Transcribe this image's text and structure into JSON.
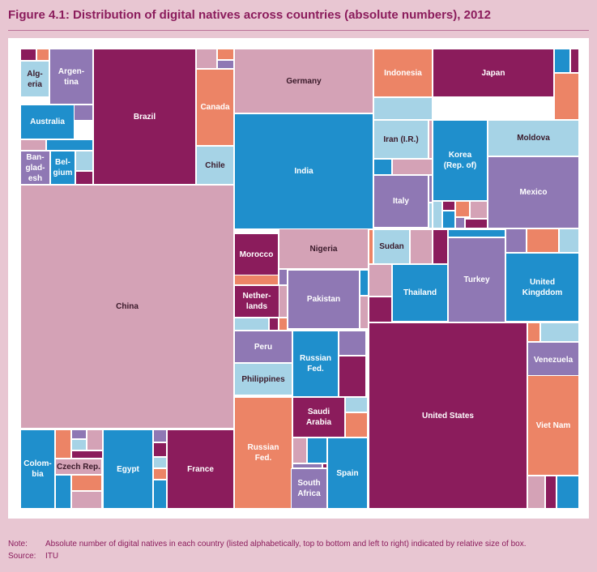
{
  "title": "Figure 4.1: Distribution of digital natives across countries (absolute numbers), 2012",
  "footnotes": {
    "note_key": "Note:",
    "note_text": "Absolute number of digital natives in each country (listed alphabetically, top to bottom and left to right) indicated by relative size of box.",
    "source_key": "Source:",
    "source_text": "ITU"
  },
  "colors": {
    "purple": "#8b1c5c",
    "blue": "#1f8fcc",
    "pink": "#d4a2b6",
    "orange": "#ec8466",
    "lavender": "#8f78b4",
    "lightblue": "#a6d3e6",
    "white_text": "#ffffff",
    "dark_text": "#3a1a2a"
  },
  "chart_data": {
    "type": "treemap",
    "unit": "absolute number of digital natives",
    "labeled_boxes": [
      {
        "label": "Alg-\neria",
        "color": "lightblue"
      },
      {
        "label": "Argen-\ntina",
        "color": "lavender"
      },
      {
        "label": "Brazil",
        "color": "purple"
      },
      {
        "label": "Canada",
        "color": "orange"
      },
      {
        "label": "Germany",
        "color": "pink"
      },
      {
        "label": "Indonesia",
        "color": "orange"
      },
      {
        "label": "Japan",
        "color": "purple"
      },
      {
        "label": "Australia",
        "color": "blue"
      },
      {
        "label": "Iran (I.R.)",
        "color": "lightblue"
      },
      {
        "label": "Moldova",
        "color": "lightblue"
      },
      {
        "label": "India",
        "color": "blue"
      },
      {
        "label": "Korea\n(Rep. of)",
        "color": "blue"
      },
      {
        "label": "Chile",
        "color": "lightblue"
      },
      {
        "label": "Ban-\nglad-\nesh",
        "color": "lavender"
      },
      {
        "label": "Bel-\ngium",
        "color": "blue"
      },
      {
        "label": "Mexico",
        "color": "lavender"
      },
      {
        "label": "Italy",
        "color": "lavender"
      },
      {
        "label": "Nigeria",
        "color": "pink"
      },
      {
        "label": "Sudan",
        "color": "lightblue"
      },
      {
        "label": "Morocco",
        "color": "purple"
      },
      {
        "label": "Turkey",
        "color": "lavender"
      },
      {
        "label": "United\nKingddom",
        "color": "blue"
      },
      {
        "label": "Thailand",
        "color": "blue"
      },
      {
        "label": "China",
        "color": "pink"
      },
      {
        "label": "Pakistan",
        "color": "lavender"
      },
      {
        "label": "Nether-\nlands",
        "color": "purple"
      },
      {
        "label": "Peru",
        "color": "lavender"
      },
      {
        "label": "Russian\nFed.",
        "color": "blue"
      },
      {
        "label": "Venezuela",
        "color": "lavender"
      },
      {
        "label": "Philippines",
        "color": "lightblue"
      },
      {
        "label": "United States",
        "color": "purple"
      },
      {
        "label": "Saudi\nArabia",
        "color": "purple"
      },
      {
        "label": "Viet Nam",
        "color": "orange"
      },
      {
        "label": "Russian\nFed.",
        "color": "orange"
      },
      {
        "label": "Spain",
        "color": "blue"
      },
      {
        "label": "Colom-\nbia",
        "color": "blue"
      },
      {
        "label": "Czech Rep.",
        "color": "pink"
      },
      {
        "label": "Egypt",
        "color": "blue"
      },
      {
        "label": "France",
        "color": "purple"
      },
      {
        "label": "South\nAfrica",
        "color": "lavender"
      }
    ],
    "filler_colors": [
      "purple",
      "orange",
      "lavender",
      "pink",
      "blue",
      "lightblue",
      "purple",
      "pink",
      "orange",
      "lavender",
      "blue",
      "purple",
      "orange",
      "lightblue",
      "pink",
      "lavender",
      "purple",
      "orange",
      "blue",
      "pink",
      "lavender",
      "lightblue",
      "purple",
      "orange",
      "pink",
      "blue",
      "lavender",
      "purple",
      "lightblue",
      "orange",
      "pink",
      "purple",
      "blue",
      "lavender",
      "orange",
      "lightblue",
      "pink",
      "purple",
      "blue",
      "orange",
      "lavender",
      "pink",
      "lightblue",
      "purple",
      "orange",
      "blue",
      "pink",
      "lavender",
      "purple",
      "lightblue",
      "orange",
      "pink",
      "blue",
      "lavender",
      "purple",
      "orange",
      "lightblue",
      "pink",
      "purple",
      "blue",
      "orange",
      "lavender",
      "pink",
      "lightblue",
      "purple",
      "blue",
      "orange",
      "pink",
      "lavender",
      "purple",
      "lightblue",
      "orange",
      "blue",
      "pink",
      "purple",
      "lavender",
      "orange",
      "lightblue",
      "pink",
      "blue",
      "purple",
      "orange",
      "lavender",
      "pink",
      "lightblue",
      "purple",
      "blue",
      "orange",
      "pink",
      "lavender"
    ]
  }
}
